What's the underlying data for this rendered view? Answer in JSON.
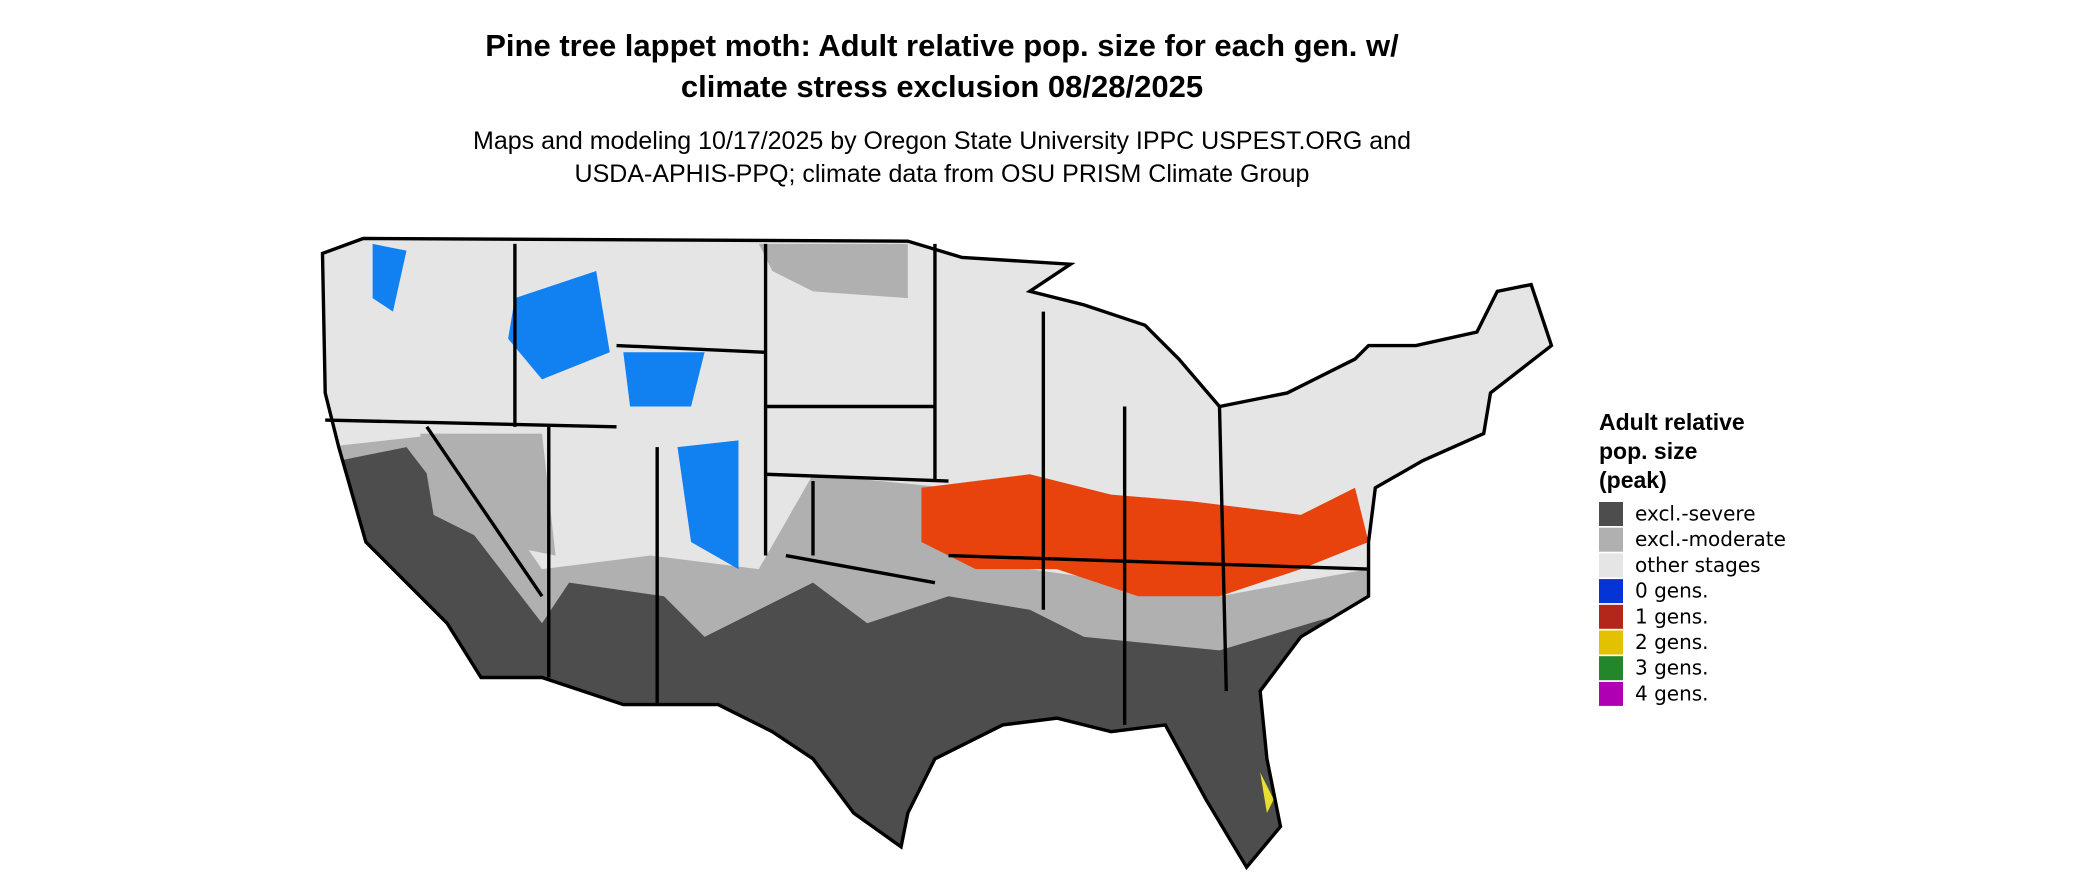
{
  "title": [
    "Pine tree lappet moth: Adult relative pop. size for each gen. w/",
    "climate stress exclusion 08/28/2025"
  ],
  "subtitle": [
    "Maps and modeling 10/17/2025 by Oregon State University IPPC USPEST.ORG and",
    "USDA-APHIS-PPQ; climate data from OSU PRISM Climate Group"
  ],
  "legend": {
    "title": [
      "Adult relative",
      "pop. size",
      "(peak)"
    ],
    "items": [
      {
        "label": "excl.-severe",
        "color": "#4d4d4d"
      },
      {
        "label": "excl.-moderate",
        "color": "#b0b0b0"
      },
      {
        "label": "other stages",
        "color": "#e5e5e5"
      },
      {
        "label": "0 gens.",
        "color": "#0433d6"
      },
      {
        "label": "1 gens.",
        "color": "#b3261a"
      },
      {
        "label": "2 gens.",
        "color": "#e3c000"
      },
      {
        "label": "3 gens.",
        "color": "#23862a"
      },
      {
        "label": "4 gens.",
        "color": "#b000b4"
      }
    ]
  }
}
